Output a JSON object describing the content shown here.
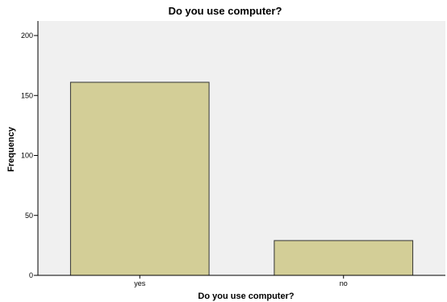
{
  "chart_data": {
    "type": "bar",
    "title": "Do you use computer?",
    "xlabel": "Do you use computer?",
    "ylabel": "Frequency",
    "categories": [
      "yes",
      "no"
    ],
    "values": [
      161,
      29
    ],
    "ylim": [
      0,
      200
    ],
    "yticks": [
      0,
      50,
      100,
      150,
      200
    ],
    "grid": false,
    "legend": "none",
    "colors": {
      "bar_fill": "#d3ce97",
      "bar_stroke": "#333333",
      "plot_background": "#f0f0f0",
      "axis": "#000000"
    }
  }
}
